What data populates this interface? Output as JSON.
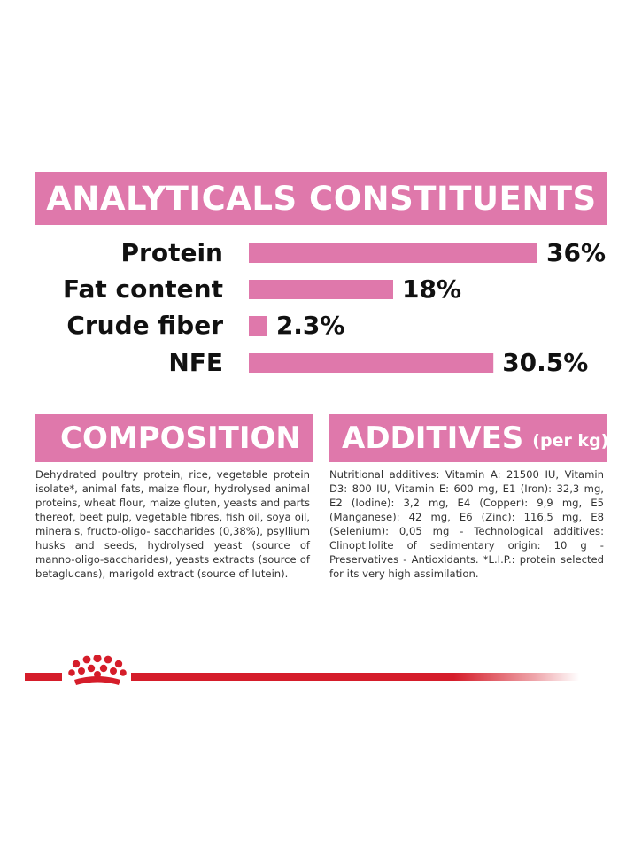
{
  "analytics": {
    "title": "ANALYTICALS CONSTITUENTS"
  },
  "chart_data": {
    "type": "bar",
    "orientation": "horizontal",
    "title": "ANALYTICALS CONSTITUENTS",
    "categories": [
      "Protein",
      "Fat content",
      "Crude fiber",
      "NFE"
    ],
    "values": [
      36,
      18,
      2.3,
      30.5
    ],
    "value_labels": [
      "36%",
      "18%",
      "2.3%",
      "30.5%"
    ],
    "unit": "%",
    "xlim": [
      0,
      36
    ],
    "grid": false,
    "legend": "none",
    "bar_color": "#df78ab"
  },
  "composition": {
    "title": "COMPOSITION",
    "text": "Dehydrated poultry protein, rice, vegetable protein isolate*, animal fats, maize flour, hydrolysed animal proteins, wheat flour, maize gluten, yeasts and parts thereof, beet pulp, vegetable fibres, fish oil, soya oil, minerals, fructo-oligo- saccharides (0,38%), psyllium husks and seeds, hydrolysed yeast (source of manno-oligo-saccharides), yeasts extracts (source of betaglucans), marigold extract (source of lutein)."
  },
  "additives": {
    "title": "ADDITIVES",
    "subtitle": "(per kg)",
    "text": "Nutritional additives: Vitamin A: 21500 IU, Vitamin D3: 800 IU, Vitamin E: 600 mg, E1 (Iron): 32,3 mg, E2 (Iodine): 3,2 mg, E4 (Copper): 9,9 mg, E5 (Manganese): 42 mg, E6 (Zinc): 116,5 mg, E8 (Selenium): 0,05 mg - Technological additives: Clinoptilolite of sedimentary origin: 10 g - Preservatives - Antioxidants. *L.I.P.: protein selected for its very high assimilation."
  },
  "colors": {
    "accent_pink": "#df78ab",
    "brand_red": "#d51d2a"
  },
  "footer": {
    "logo_icon": "crown-logo-icon"
  }
}
